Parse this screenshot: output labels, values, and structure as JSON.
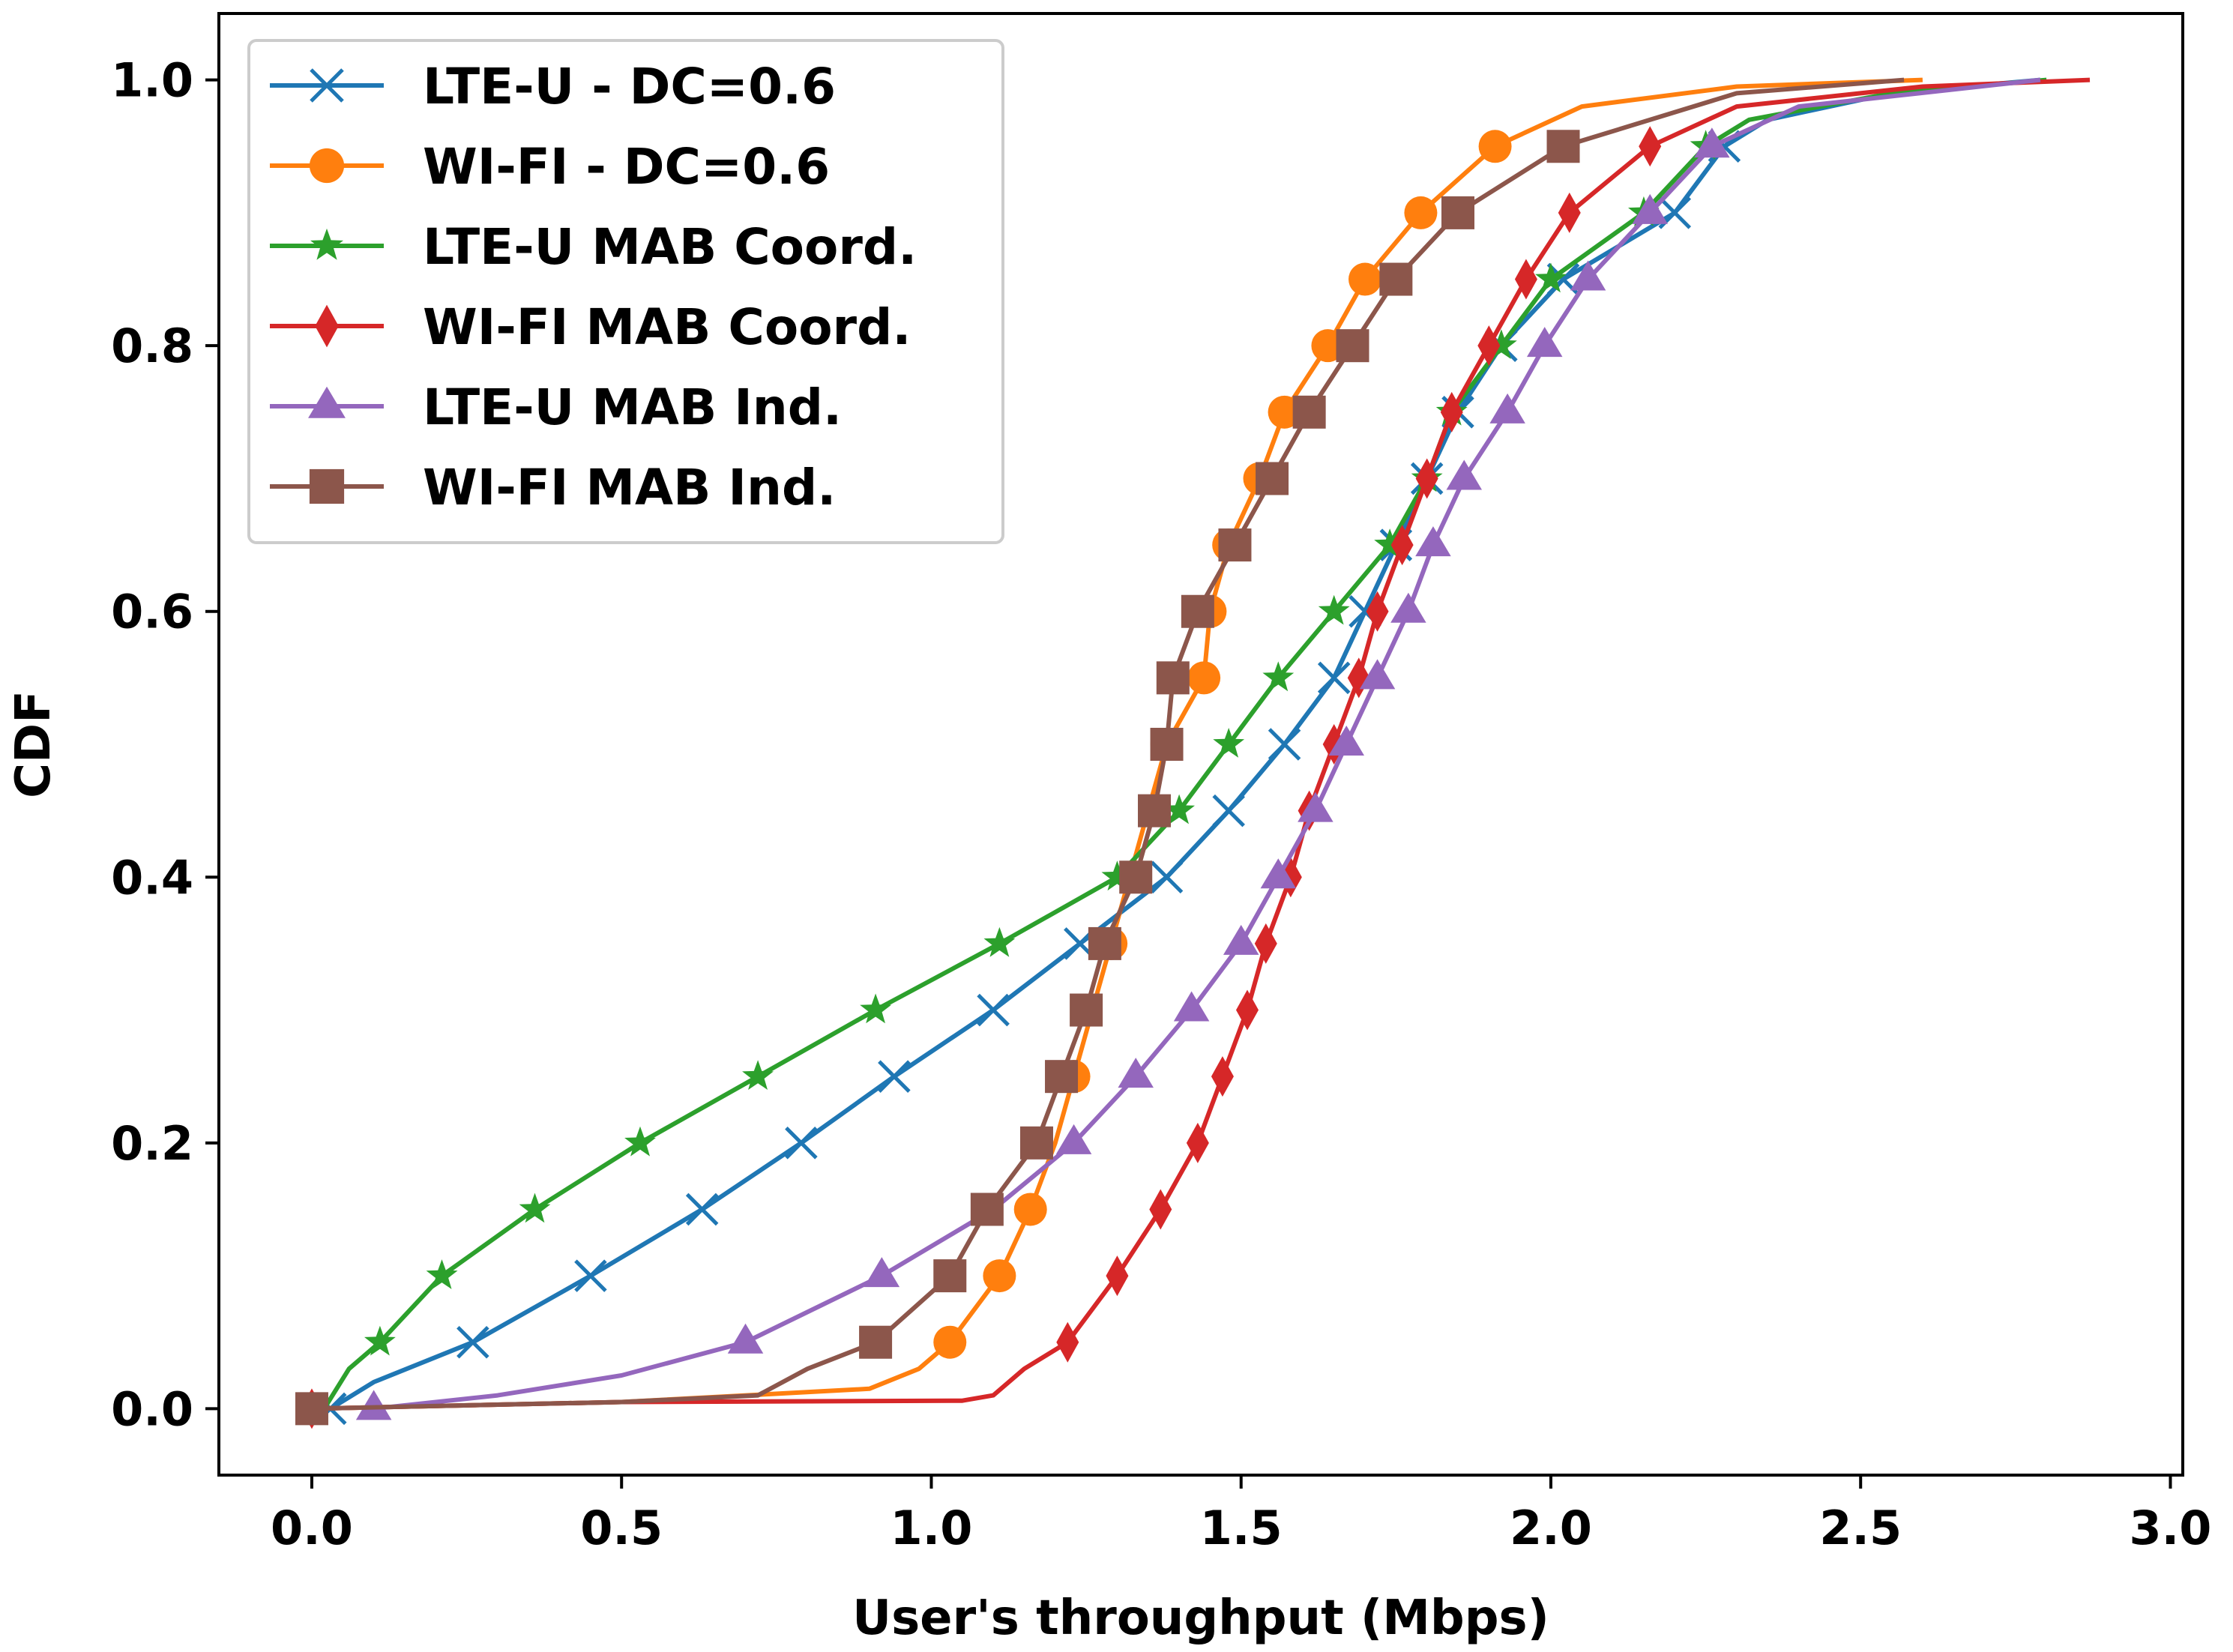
{
  "chart_data": {
    "type": "line",
    "title": "",
    "xlabel": "User's throughput (Mbps)",
    "ylabel": "CDF",
    "xlim": [
      -0.15,
      3.02
    ],
    "ylim": [
      -0.05,
      1.05
    ],
    "xticks": [
      0.0,
      0.5,
      1.0,
      1.5,
      2.0,
      2.5,
      3.0
    ],
    "xtick_labels": [
      "0.0",
      "0.5",
      "1.0",
      "1.5",
      "2.0",
      "2.5",
      "3.0"
    ],
    "yticks": [
      0.0,
      0.2,
      0.4,
      0.6,
      0.8,
      1.0
    ],
    "ytick_labels": [
      "0.0",
      "0.2",
      "0.4",
      "0.6",
      "0.8",
      "1.0"
    ],
    "grid": false,
    "legend_position": "top-left",
    "series": [
      {
        "name": "LTE-U - DC=0.6",
        "color": "#1f77b4",
        "marker": "x",
        "line": [
          [
            0.03,
            0.0
          ],
          [
            0.1,
            0.02
          ],
          [
            0.26,
            0.05
          ],
          [
            0.45,
            0.1
          ],
          [
            0.63,
            0.15
          ],
          [
            0.79,
            0.2
          ],
          [
            0.94,
            0.25
          ],
          [
            1.1,
            0.3
          ],
          [
            1.24,
            0.35
          ],
          [
            1.38,
            0.4
          ],
          [
            1.48,
            0.45
          ],
          [
            1.57,
            0.5
          ],
          [
            1.65,
            0.55
          ],
          [
            1.7,
            0.6
          ],
          [
            1.75,
            0.65
          ],
          [
            1.8,
            0.7
          ],
          [
            1.85,
            0.75
          ],
          [
            1.92,
            0.8
          ],
          [
            2.02,
            0.85
          ],
          [
            2.2,
            0.9
          ],
          [
            2.28,
            0.95
          ],
          [
            2.35,
            0.97
          ],
          [
            2.55,
            0.99
          ],
          [
            2.79,
            1.0
          ]
        ],
        "markers": [
          [
            0.03,
            0.0
          ],
          [
            0.26,
            0.05
          ],
          [
            0.45,
            0.1
          ],
          [
            0.63,
            0.15
          ],
          [
            0.79,
            0.2
          ],
          [
            0.94,
            0.25
          ],
          [
            1.1,
            0.3
          ],
          [
            1.24,
            0.35
          ],
          [
            1.38,
            0.4
          ],
          [
            1.48,
            0.45
          ],
          [
            1.57,
            0.5
          ],
          [
            1.65,
            0.55
          ],
          [
            1.7,
            0.6
          ],
          [
            1.75,
            0.65
          ],
          [
            1.8,
            0.7
          ],
          [
            1.85,
            0.75
          ],
          [
            1.92,
            0.8
          ],
          [
            2.02,
            0.85
          ],
          [
            2.2,
            0.9
          ],
          [
            2.28,
            0.95
          ]
        ]
      },
      {
        "name": "WI-FI - DC=0.6",
        "color": "#ff7f0e",
        "marker": "o",
        "line": [
          [
            0.0,
            0.0
          ],
          [
            0.5,
            0.005
          ],
          [
            0.9,
            0.015
          ],
          [
            0.98,
            0.03
          ],
          [
            1.03,
            0.05
          ],
          [
            1.11,
            0.1
          ],
          [
            1.16,
            0.15
          ],
          [
            1.2,
            0.2
          ],
          [
            1.23,
            0.25
          ],
          [
            1.26,
            0.3
          ],
          [
            1.29,
            0.35
          ],
          [
            1.32,
            0.4
          ],
          [
            1.35,
            0.45
          ],
          [
            1.38,
            0.5
          ],
          [
            1.44,
            0.55
          ],
          [
            1.45,
            0.6
          ],
          [
            1.48,
            0.65
          ],
          [
            1.53,
            0.7
          ],
          [
            1.57,
            0.75
          ],
          [
            1.64,
            0.8
          ],
          [
            1.7,
            0.85
          ],
          [
            1.79,
            0.9
          ],
          [
            1.91,
            0.95
          ],
          [
            2.05,
            0.98
          ],
          [
            2.3,
            0.995
          ],
          [
            2.6,
            1.0
          ]
        ],
        "markers": [
          [
            0.0,
            0.0
          ],
          [
            1.03,
            0.05
          ],
          [
            1.11,
            0.1
          ],
          [
            1.16,
            0.15
          ],
          [
            1.23,
            0.25
          ],
          [
            1.29,
            0.35
          ],
          [
            1.38,
            0.5
          ],
          [
            1.44,
            0.55
          ],
          [
            1.45,
            0.6
          ],
          [
            1.48,
            0.65
          ],
          [
            1.53,
            0.7
          ],
          [
            1.57,
            0.75
          ],
          [
            1.64,
            0.8
          ],
          [
            1.7,
            0.85
          ],
          [
            1.79,
            0.9
          ],
          [
            1.91,
            0.95
          ]
        ]
      },
      {
        "name": "LTE-U MAB Coord.",
        "color": "#2ca02c",
        "marker": "*",
        "line": [
          [
            0.02,
            0.0
          ],
          [
            0.06,
            0.03
          ],
          [
            0.11,
            0.05
          ],
          [
            0.21,
            0.1
          ],
          [
            0.36,
            0.15
          ],
          [
            0.53,
            0.2
          ],
          [
            0.72,
            0.25
          ],
          [
            0.91,
            0.3
          ],
          [
            1.11,
            0.35
          ],
          [
            1.3,
            0.4
          ],
          [
            1.4,
            0.45
          ],
          [
            1.48,
            0.5
          ],
          [
            1.56,
            0.55
          ],
          [
            1.65,
            0.6
          ],
          [
            1.74,
            0.65
          ],
          [
            1.8,
            0.7
          ],
          [
            1.84,
            0.75
          ],
          [
            1.92,
            0.8
          ],
          [
            2.0,
            0.85
          ],
          [
            2.15,
            0.9
          ],
          [
            2.25,
            0.95
          ],
          [
            2.32,
            0.97
          ],
          [
            2.55,
            0.99
          ],
          [
            2.8,
            1.0
          ]
        ],
        "markers": [
          [
            0.11,
            0.05
          ],
          [
            0.21,
            0.1
          ],
          [
            0.36,
            0.15
          ],
          [
            0.53,
            0.2
          ],
          [
            0.72,
            0.25
          ],
          [
            0.91,
            0.3
          ],
          [
            1.11,
            0.35
          ],
          [
            1.3,
            0.4
          ],
          [
            1.4,
            0.45
          ],
          [
            1.48,
            0.5
          ],
          [
            1.56,
            0.55
          ],
          [
            1.65,
            0.6
          ],
          [
            1.74,
            0.65
          ],
          [
            1.8,
            0.7
          ],
          [
            1.84,
            0.75
          ],
          [
            1.92,
            0.8
          ],
          [
            2.0,
            0.85
          ],
          [
            2.15,
            0.9
          ],
          [
            2.25,
            0.95
          ]
        ]
      },
      {
        "name": "WI-FI MAB Coord.",
        "color": "#d62728",
        "marker": "d",
        "line": [
          [
            0.0,
            0.0
          ],
          [
            0.5,
            0.005
          ],
          [
            1.05,
            0.006
          ],
          [
            1.1,
            0.01
          ],
          [
            1.15,
            0.03
          ],
          [
            1.22,
            0.05
          ],
          [
            1.3,
            0.1
          ],
          [
            1.37,
            0.15
          ],
          [
            1.43,
            0.2
          ],
          [
            1.47,
            0.25
          ],
          [
            1.51,
            0.3
          ],
          [
            1.54,
            0.35
          ],
          [
            1.58,
            0.4
          ],
          [
            1.61,
            0.45
          ],
          [
            1.65,
            0.5
          ],
          [
            1.69,
            0.55
          ],
          [
            1.72,
            0.6
          ],
          [
            1.76,
            0.65
          ],
          [
            1.8,
            0.7
          ],
          [
            1.84,
            0.75
          ],
          [
            1.9,
            0.8
          ],
          [
            1.96,
            0.85
          ],
          [
            2.03,
            0.9
          ],
          [
            2.16,
            0.95
          ],
          [
            2.3,
            0.98
          ],
          [
            2.6,
            0.995
          ],
          [
            2.87,
            1.0
          ]
        ],
        "markers": [
          [
            0.0,
            0.0
          ],
          [
            1.22,
            0.05
          ],
          [
            1.3,
            0.1
          ],
          [
            1.37,
            0.15
          ],
          [
            1.43,
            0.2
          ],
          [
            1.47,
            0.25
          ],
          [
            1.51,
            0.3
          ],
          [
            1.54,
            0.35
          ],
          [
            1.58,
            0.4
          ],
          [
            1.61,
            0.45
          ],
          [
            1.65,
            0.5
          ],
          [
            1.69,
            0.55
          ],
          [
            1.72,
            0.6
          ],
          [
            1.76,
            0.65
          ],
          [
            1.8,
            0.7
          ],
          [
            1.84,
            0.75
          ],
          [
            1.9,
            0.8
          ],
          [
            1.96,
            0.85
          ],
          [
            2.03,
            0.9
          ],
          [
            2.16,
            0.95
          ]
        ]
      },
      {
        "name": "LTE-U MAB Ind.",
        "color": "#9467bd",
        "marker": "^",
        "line": [
          [
            0.1,
            0.0
          ],
          [
            0.3,
            0.01
          ],
          [
            0.5,
            0.025
          ],
          [
            0.7,
            0.05
          ],
          [
            0.92,
            0.1
          ],
          [
            1.1,
            0.15
          ],
          [
            1.23,
            0.2
          ],
          [
            1.33,
            0.25
          ],
          [
            1.42,
            0.3
          ],
          [
            1.5,
            0.35
          ],
          [
            1.56,
            0.4
          ],
          [
            1.62,
            0.45
          ],
          [
            1.67,
            0.5
          ],
          [
            1.72,
            0.55
          ],
          [
            1.77,
            0.6
          ],
          [
            1.81,
            0.65
          ],
          [
            1.86,
            0.7
          ],
          [
            1.93,
            0.75
          ],
          [
            1.99,
            0.8
          ],
          [
            2.06,
            0.85
          ],
          [
            2.16,
            0.9
          ],
          [
            2.26,
            0.95
          ],
          [
            2.4,
            0.98
          ],
          [
            2.79,
            1.0
          ]
        ],
        "markers": [
          [
            0.1,
            0.0
          ],
          [
            0.7,
            0.05
          ],
          [
            0.92,
            0.1
          ],
          [
            1.23,
            0.2
          ],
          [
            1.33,
            0.25
          ],
          [
            1.42,
            0.3
          ],
          [
            1.5,
            0.35
          ],
          [
            1.56,
            0.4
          ],
          [
            1.62,
            0.45
          ],
          [
            1.67,
            0.5
          ],
          [
            1.72,
            0.55
          ],
          [
            1.77,
            0.6
          ],
          [
            1.81,
            0.65
          ],
          [
            1.86,
            0.7
          ],
          [
            1.93,
            0.75
          ],
          [
            1.99,
            0.8
          ],
          [
            2.06,
            0.85
          ],
          [
            2.16,
            0.9
          ],
          [
            2.26,
            0.95
          ]
        ]
      },
      {
        "name": "WI-FI MAB Ind.",
        "color": "#8c564b",
        "marker": "s",
        "line": [
          [
            0.0,
            0.0
          ],
          [
            0.5,
            0.005
          ],
          [
            0.72,
            0.01
          ],
          [
            0.8,
            0.03
          ],
          [
            0.91,
            0.05
          ],
          [
            1.03,
            0.1
          ],
          [
            1.09,
            0.15
          ],
          [
            1.17,
            0.2
          ],
          [
            1.21,
            0.25
          ],
          [
            1.25,
            0.3
          ],
          [
            1.28,
            0.35
          ],
          [
            1.33,
            0.4
          ],
          [
            1.36,
            0.45
          ],
          [
            1.38,
            0.5
          ],
          [
            1.39,
            0.55
          ],
          [
            1.43,
            0.6
          ],
          [
            1.49,
            0.65
          ],
          [
            1.55,
            0.7
          ],
          [
            1.61,
            0.75
          ],
          [
            1.68,
            0.8
          ],
          [
            1.75,
            0.85
          ],
          [
            1.85,
            0.9
          ],
          [
            2.02,
            0.95
          ],
          [
            2.3,
            0.99
          ],
          [
            2.57,
            1.0
          ]
        ],
        "markers": [
          [
            0.0,
            0.0
          ],
          [
            0.91,
            0.05
          ],
          [
            1.03,
            0.1
          ],
          [
            1.09,
            0.15
          ],
          [
            1.17,
            0.2
          ],
          [
            1.21,
            0.25
          ],
          [
            1.25,
            0.3
          ],
          [
            1.28,
            0.35
          ],
          [
            1.33,
            0.4
          ],
          [
            1.36,
            0.45
          ],
          [
            1.38,
            0.5
          ],
          [
            1.39,
            0.55
          ],
          [
            1.43,
            0.6
          ],
          [
            1.49,
            0.65
          ],
          [
            1.55,
            0.7
          ],
          [
            1.61,
            0.75
          ],
          [
            1.68,
            0.8
          ],
          [
            1.75,
            0.85
          ],
          [
            1.85,
            0.9
          ],
          [
            2.02,
            0.95
          ]
        ]
      }
    ]
  }
}
